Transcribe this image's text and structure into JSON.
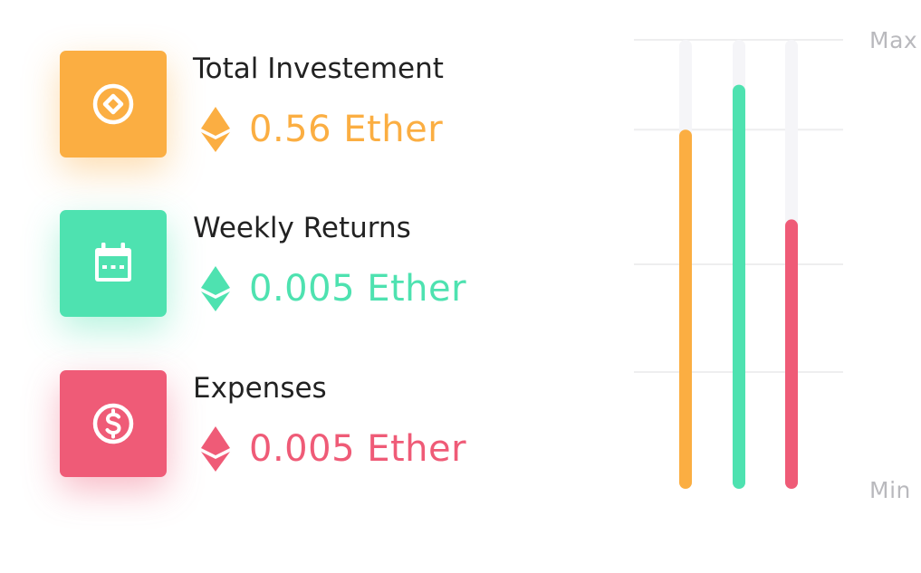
{
  "colors": {
    "orange": "#fbae42",
    "green": "#4ee2b0",
    "red": "#ef5b77",
    "track": "#f5f5f8",
    "grid": "#eeeeef"
  },
  "stats": [
    {
      "title": "Total Investement",
      "value": "0.56 Ether",
      "color": "#fbae42",
      "icon": "coin-diamond-icon"
    },
    {
      "title": "Weekly Returns",
      "value": "0.005 Ether",
      "color": "#4ee2b0",
      "icon": "calendar-icon"
    },
    {
      "title": "Expenses",
      "value": "0.005 Ether",
      "color": "#ef5b77",
      "icon": "dollar-icon"
    }
  ],
  "chart_data": {
    "type": "bar",
    "orientation": "vertical",
    "categories": [
      "Total Investement",
      "Weekly Returns",
      "Expenses"
    ],
    "values": [
      0.8,
      0.9,
      0.6
    ],
    "colors": [
      "#fbae42",
      "#4ee2b0",
      "#ef5b77"
    ],
    "ylim": [
      0,
      1
    ],
    "ytick_labels": {
      "max": "Max",
      "min": "Min"
    },
    "grid": true,
    "legend": "none"
  }
}
